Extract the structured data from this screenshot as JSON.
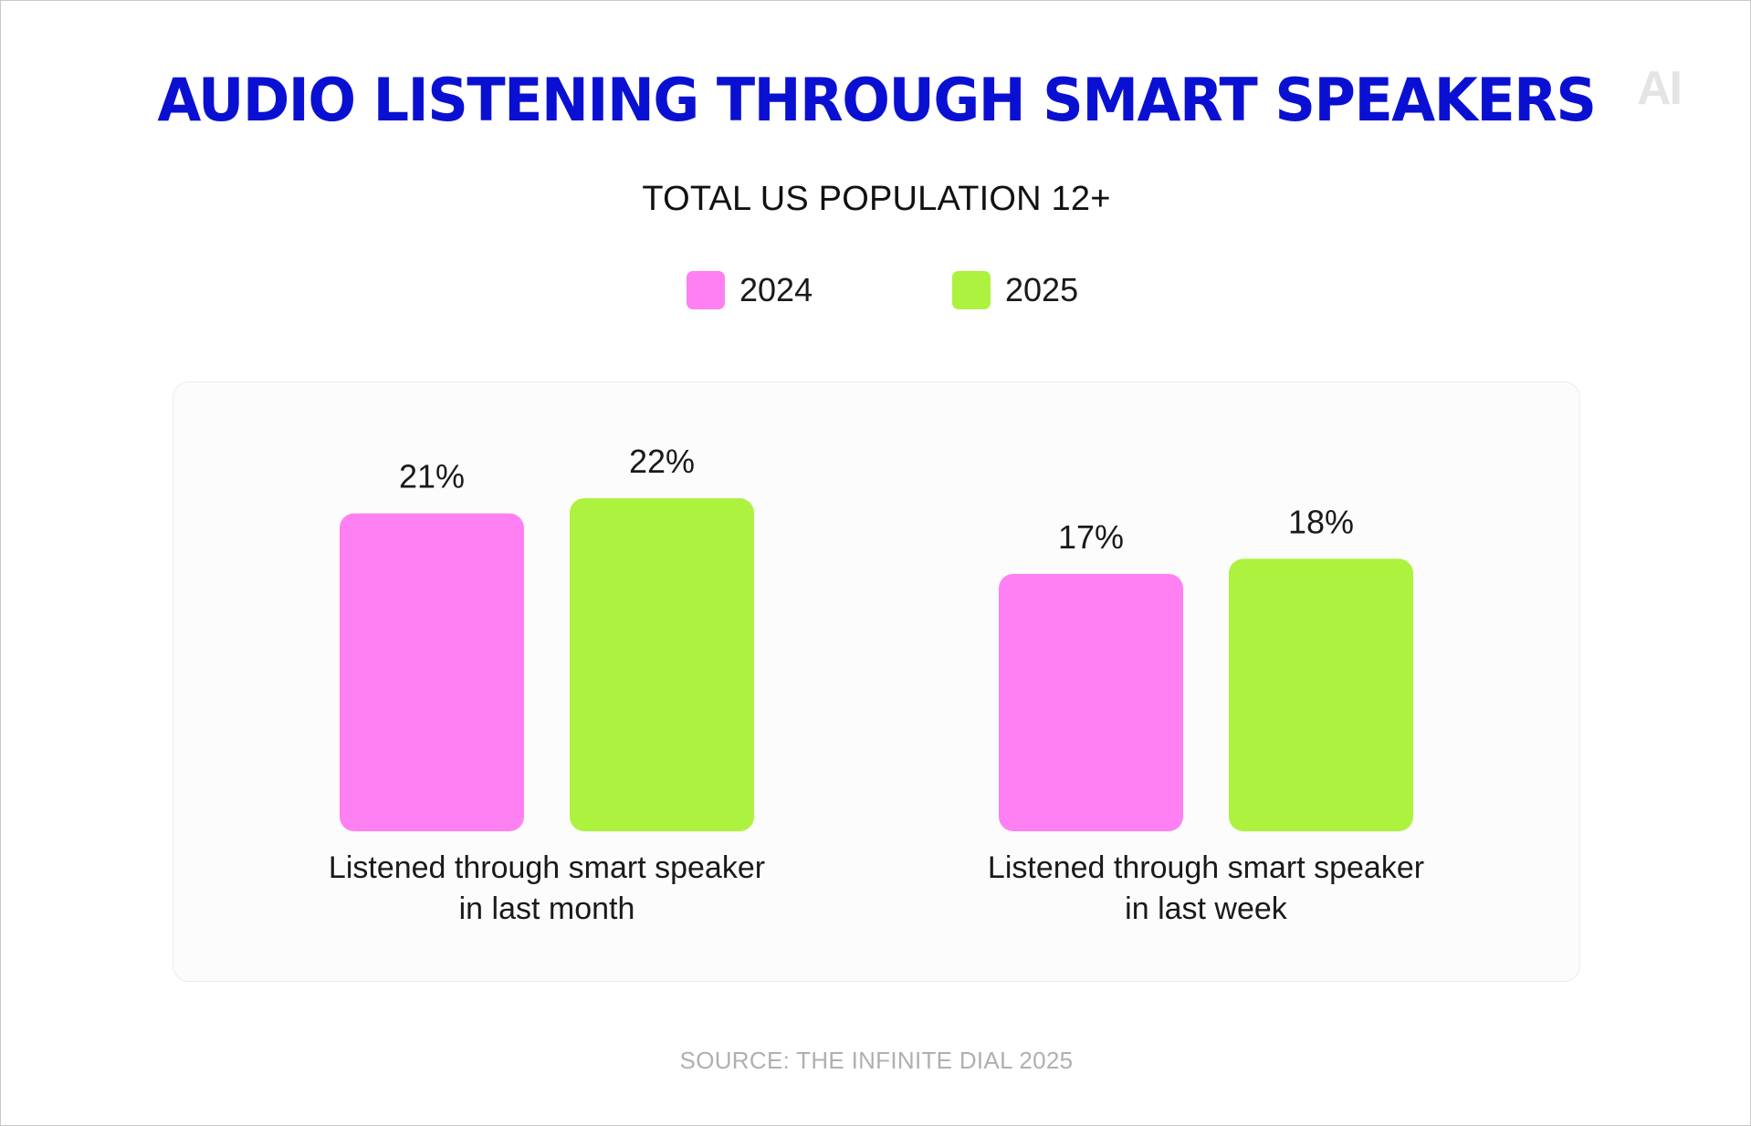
{
  "header": {
    "title": "AUDIO LISTENING THROUGH SMART SPEAKERS",
    "subtitle": "TOTAL US POPULATION 12+",
    "logo": "AI"
  },
  "footer": {
    "source": "SOURCE: THE INFINITE DIAL 2025"
  },
  "colors": {
    "title": "#0a10d2",
    "series_2024": "#ff80f3",
    "series_2025": "#adf23f",
    "panel_bg": "#fcfcfc"
  },
  "chart_data": {
    "type": "bar",
    "title": "AUDIO LISTENING THROUGH SMART SPEAKERS",
    "subtitle": "TOTAL US POPULATION 12+",
    "categories": [
      [
        "Listened through smart speaker",
        "in last month"
      ],
      [
        "Listened through smart speaker",
        "in last week"
      ]
    ],
    "series": [
      {
        "name": "2024",
        "color": "#ff80f3",
        "values": [
          21,
          17
        ],
        "labels": [
          "21%",
          "17%"
        ]
      },
      {
        "name": "2025",
        "color": "#adf23f",
        "values": [
          22,
          18
        ],
        "labels": [
          "22%",
          "18%"
        ]
      }
    ],
    "unit": "%",
    "legend": "top-center",
    "grid": false,
    "ylim": [
      0,
      22
    ]
  }
}
